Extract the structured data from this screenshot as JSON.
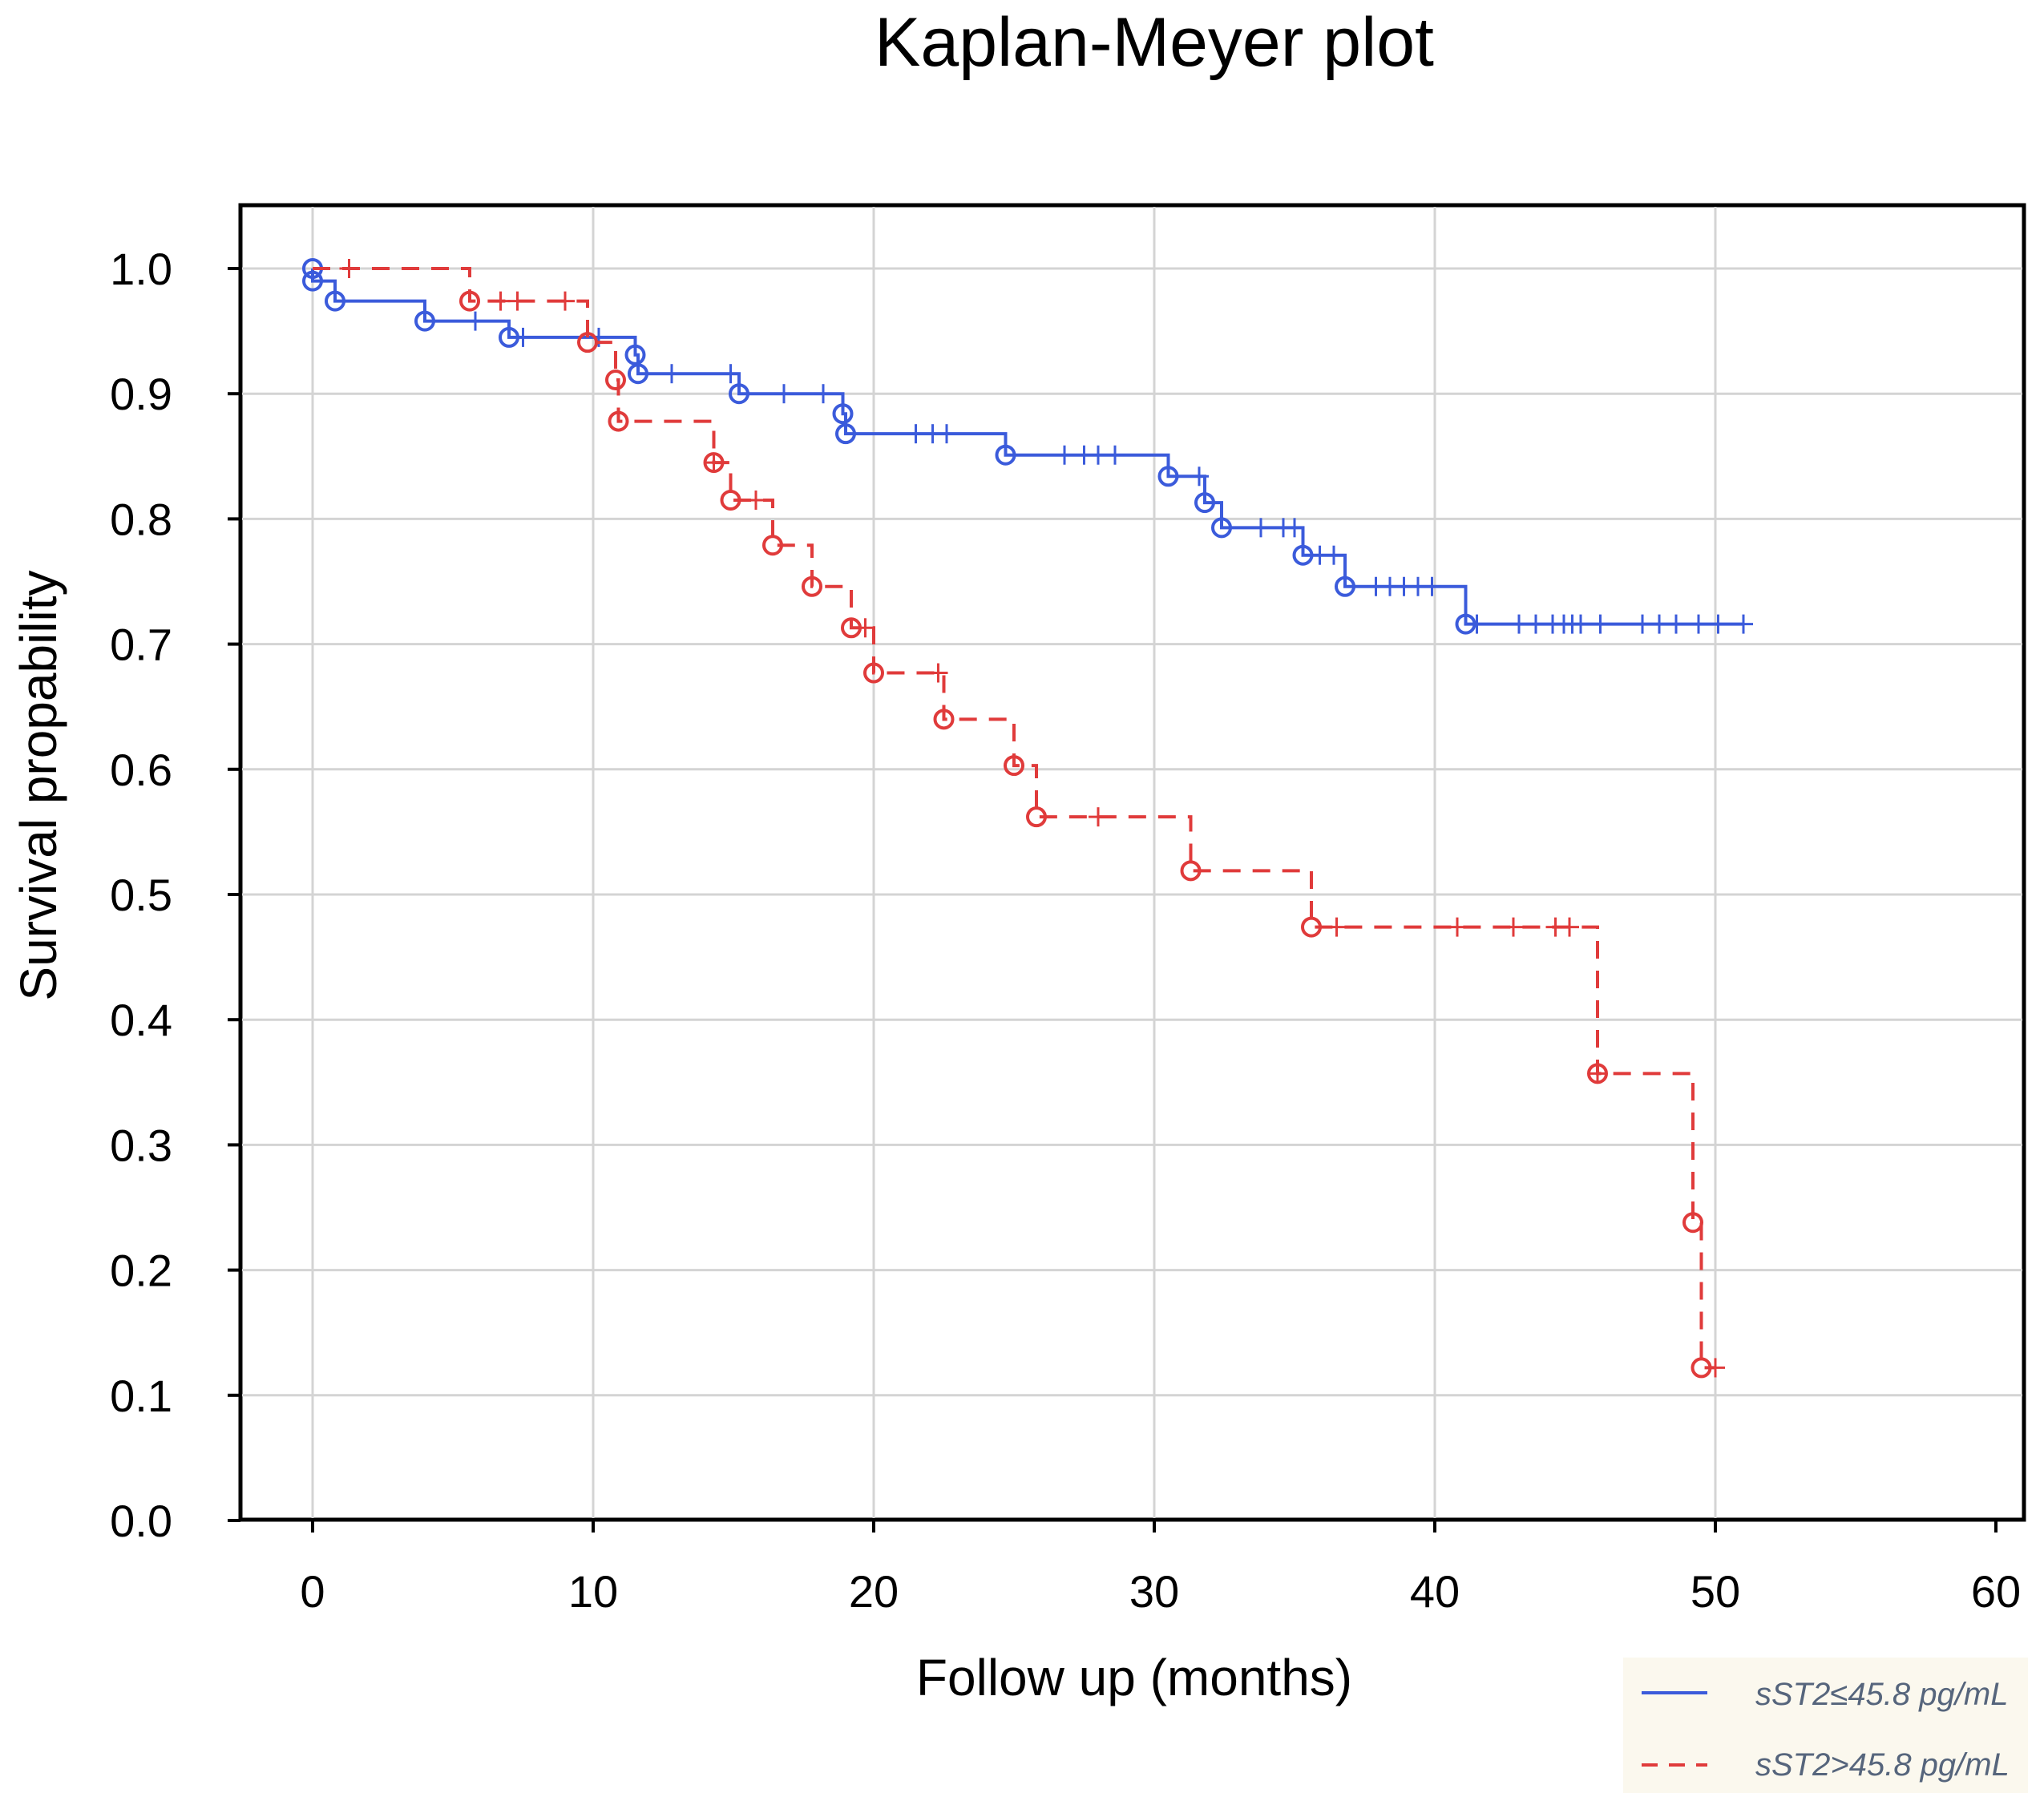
{
  "chart_data": {
    "type": "line",
    "subtype": "kaplan-meier",
    "title": "Kaplan-Meyer plot",
    "xlabel": "Follow up (months)",
    "ylabel": "Survival propability",
    "xlim": [
      0,
      60
    ],
    "ylim": [
      0.0,
      1.0
    ],
    "xticks": [
      "0",
      "10",
      "20",
      "30",
      "40",
      "50",
      "60"
    ],
    "yticks": [
      "0.0",
      "0.1",
      "0.2",
      "0.3",
      "0.4",
      "0.5",
      "0.6",
      "0.7",
      "0.8",
      "0.9",
      "1.0"
    ],
    "grid": true,
    "legend_position": "bottom-right",
    "series": [
      {
        "name": "sST2≤45.8 pg/mL",
        "color": "#3b5bdb",
        "line_style": "solid",
        "steps": [
          [
            0.0,
            1.0
          ],
          [
            0.0,
            0.99
          ],
          [
            0.8,
            0.974
          ],
          [
            4.0,
            0.958
          ],
          [
            7.0,
            0.945
          ],
          [
            11.5,
            0.931
          ],
          [
            11.6,
            0.916
          ],
          [
            15.2,
            0.9
          ],
          [
            18.9,
            0.884
          ],
          [
            19.0,
            0.868
          ],
          [
            24.7,
            0.851
          ],
          [
            30.5,
            0.834
          ],
          [
            31.8,
            0.813
          ],
          [
            32.4,
            0.793
          ],
          [
            35.3,
            0.771
          ],
          [
            36.8,
            0.746
          ],
          [
            41.1,
            0.716
          ],
          [
            51.0,
            0.716
          ]
        ],
        "events": [
          0.0,
          0.8,
          4.0,
          7.0,
          11.5,
          11.6,
          15.2,
          18.9,
          19.0,
          24.7,
          30.5,
          31.8,
          32.4,
          35.3,
          36.8,
          41.1
        ],
        "censored": [
          5.8,
          7.5,
          10.2,
          12.8,
          14.9,
          16.8,
          18.2,
          21.5,
          22.1,
          22.6,
          26.8,
          27.5,
          28.0,
          28.6,
          31.6,
          33.8,
          34.6,
          35.0,
          35.9,
          36.4,
          37.9,
          38.4,
          38.9,
          39.4,
          39.9,
          41.5,
          43.0,
          43.6,
          44.2,
          44.6,
          44.9,
          45.2,
          45.9,
          47.4,
          48.0,
          48.6,
          49.4,
          50.1,
          51.0
        ]
      },
      {
        "name": "sST2>45.8 pg/mL",
        "color": "#e03b3b",
        "line_style": "dashed",
        "steps": [
          [
            0.0,
            1.0
          ],
          [
            5.6,
            0.974
          ],
          [
            9.8,
            0.941
          ],
          [
            10.8,
            0.911
          ],
          [
            10.9,
            0.878
          ],
          [
            14.3,
            0.845
          ],
          [
            14.9,
            0.815
          ],
          [
            16.4,
            0.779
          ],
          [
            17.8,
            0.746
          ],
          [
            19.2,
            0.713
          ],
          [
            20.0,
            0.677
          ],
          [
            22.5,
            0.64
          ],
          [
            25.0,
            0.603
          ],
          [
            25.8,
            0.562
          ],
          [
            31.3,
            0.519
          ],
          [
            35.6,
            0.474
          ],
          [
            45.8,
            0.357
          ],
          [
            49.2,
            0.238
          ],
          [
            49.5,
            0.122
          ],
          [
            50.0,
            0.122
          ]
        ],
        "events": [
          5.6,
          9.8,
          10.8,
          10.9,
          14.3,
          14.9,
          16.4,
          17.8,
          19.2,
          20.0,
          22.5,
          25.0,
          25.8,
          31.3,
          35.6,
          45.8,
          49.2,
          49.5
        ],
        "censored": [
          1.3,
          6.7,
          7.3,
          9.0,
          14.3,
          15.8,
          19.7,
          22.3,
          28.0,
          36.5,
          40.8,
          42.8,
          44.3,
          44.8,
          45.8,
          50.0
        ]
      }
    ]
  }
}
